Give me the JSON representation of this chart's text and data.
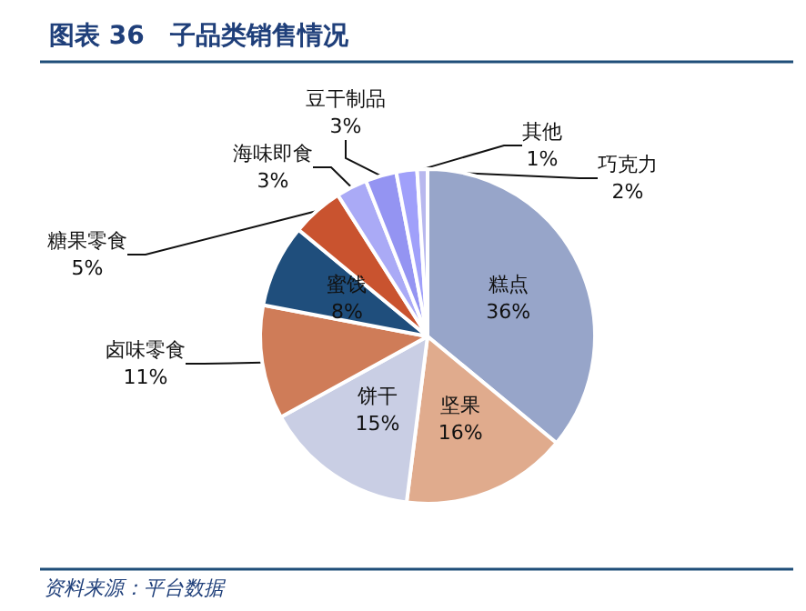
{
  "chart_data": {
    "type": "pie",
    "title": "图表 36　子品类销售情况",
    "categories": [
      "糕点",
      "坚果",
      "饼干",
      "卤味零食",
      "蜜饯",
      "糖果零食",
      "海味即食",
      "豆干制品",
      "巧克力",
      "其他"
    ],
    "values": [
      36,
      16,
      15,
      11,
      8,
      5,
      3,
      3,
      2,
      1
    ],
    "colors": [
      "#97a5c9",
      "#e0ab8d",
      "#c9cee4",
      "#cf7c58",
      "#1f4e7c",
      "#c9532f",
      "#aaaaf6",
      "#9494f2",
      "#a0a0fa",
      "#b8b8ee"
    ],
    "value_labels": [
      "36%",
      "16%",
      "15%",
      "11%",
      "8%",
      "5%",
      "3%",
      "3%",
      "2%",
      "1%"
    ],
    "legend": false,
    "annotations": [
      "资料来源：平台数据"
    ]
  }
}
